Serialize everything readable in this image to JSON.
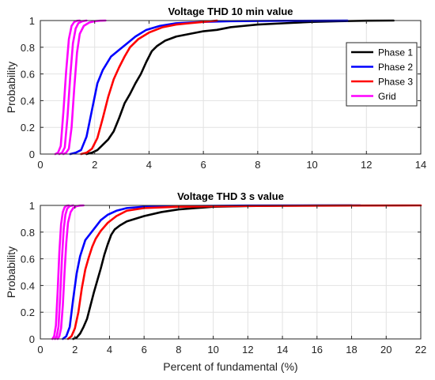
{
  "chart_data": [
    {
      "type": "line",
      "title": "Voltage THD 10 min value",
      "xlabel": "",
      "ylabel": "Probability",
      "xlim": [
        0,
        14
      ],
      "ylim": [
        0,
        1
      ],
      "xticks": [
        0,
        2,
        4,
        6,
        8,
        10,
        12,
        14
      ],
      "yticks": [
        0,
        0.2,
        0.4,
        0.6,
        0.8,
        1
      ],
      "grid": true,
      "legend": "top-right",
      "series": [
        {
          "name": "Phase 1",
          "color": "#000000",
          "x": [
            1.7,
            1.9,
            2.1,
            2.3,
            2.5,
            2.7,
            2.9,
            3.1,
            3.3,
            3.5,
            3.7,
            3.9,
            4.1,
            4.3,
            4.6,
            5.0,
            5.5,
            6.0,
            6.5,
            7.0,
            7.5,
            8.0,
            9.0,
            10.0,
            11.0,
            12.0,
            13.0
          ],
          "y": [
            0,
            0.01,
            0.03,
            0.07,
            0.11,
            0.17,
            0.27,
            0.38,
            0.45,
            0.53,
            0.6,
            0.69,
            0.77,
            0.81,
            0.85,
            0.88,
            0.9,
            0.92,
            0.93,
            0.95,
            0.96,
            0.97,
            0.98,
            0.99,
            0.995,
            0.999,
            1.0
          ]
        },
        {
          "name": "Phase 2",
          "color": "#0000ff",
          "x": [
            1.1,
            1.3,
            1.5,
            1.7,
            1.9,
            2.1,
            2.3,
            2.6,
            2.9,
            3.2,
            3.5,
            3.9,
            4.4,
            5.0,
            6.0,
            7.0,
            9.0,
            11.3
          ],
          "y": [
            0,
            0.01,
            0.03,
            0.13,
            0.33,
            0.53,
            0.63,
            0.73,
            0.78,
            0.83,
            0.88,
            0.93,
            0.96,
            0.98,
            0.99,
            0.995,
            0.998,
            1.0
          ]
        },
        {
          "name": "Phase 3",
          "color": "#ff0000",
          "x": [
            1.5,
            1.7,
            1.9,
            2.1,
            2.3,
            2.5,
            2.7,
            2.9,
            3.1,
            3.3,
            3.6,
            4.0,
            4.5,
            5.0,
            5.5,
            6.0,
            6.5
          ],
          "y": [
            0,
            0.01,
            0.04,
            0.12,
            0.27,
            0.43,
            0.56,
            0.65,
            0.73,
            0.8,
            0.86,
            0.91,
            0.95,
            0.97,
            0.98,
            0.99,
            1.0
          ]
        },
        {
          "name": "Grid",
          "color": "#ff00ff",
          "x": [
            0.55,
            0.65,
            0.75,
            0.85,
            0.95,
            1.05,
            1.15,
            1.25,
            1.35,
            1.45
          ],
          "y": [
            0,
            0.01,
            0.06,
            0.32,
            0.62,
            0.86,
            0.96,
            0.99,
            0.998,
            1.0
          ]
        },
        {
          "name": "",
          "color": "#ff00ff",
          "x": [
            0.7,
            0.8,
            0.9,
            1.0,
            1.1,
            1.2,
            1.3,
            1.4,
            1.55,
            1.7
          ],
          "y": [
            0,
            0.01,
            0.05,
            0.28,
            0.58,
            0.83,
            0.94,
            0.98,
            0.995,
            1.0
          ]
        },
        {
          "name": "",
          "color": "#ff00ff",
          "x": [
            0.85,
            0.95,
            1.05,
            1.15,
            1.25,
            1.35,
            1.45,
            1.6,
            1.8,
            2.0,
            2.2,
            2.4
          ],
          "y": [
            0,
            0.01,
            0.04,
            0.2,
            0.5,
            0.76,
            0.9,
            0.96,
            0.985,
            0.995,
            0.999,
            1.0
          ]
        }
      ]
    },
    {
      "type": "line",
      "title": "Voltage THD 3 s value",
      "xlabel": "Percent of fundamental (%)",
      "ylabel": "Probability",
      "xlim": [
        0,
        22
      ],
      "ylim": [
        0,
        1
      ],
      "xticks": [
        0,
        2,
        4,
        6,
        8,
        10,
        12,
        14,
        16,
        18,
        20,
        22
      ],
      "yticks": [
        0,
        0.2,
        0.4,
        0.6,
        0.8,
        1
      ],
      "grid": true,
      "legend": "",
      "series": [
        {
          "name": "Phase 1",
          "color": "#000000",
          "x": [
            1.9,
            2.1,
            2.3,
            2.5,
            2.7,
            2.9,
            3.1,
            3.3,
            3.5,
            3.7,
            3.9,
            4.1,
            4.3,
            4.6,
            5.0,
            5.5,
            6.0,
            7.0,
            8.0,
            9.0,
            10.0,
            12.0,
            14.0,
            16.0,
            18.0
          ],
          "y": [
            0,
            0.01,
            0.04,
            0.09,
            0.15,
            0.25,
            0.35,
            0.44,
            0.53,
            0.63,
            0.71,
            0.78,
            0.82,
            0.85,
            0.88,
            0.9,
            0.92,
            0.95,
            0.97,
            0.98,
            0.99,
            0.995,
            0.998,
            0.999,
            1.0
          ]
        },
        {
          "name": "Phase 2",
          "color": "#0000ff",
          "x": [
            1.3,
            1.5,
            1.7,
            1.9,
            2.1,
            2.3,
            2.6,
            2.9,
            3.2,
            3.5,
            3.9,
            4.4,
            5.0,
            6.0,
            8.0,
            12.0,
            18.5
          ],
          "y": [
            0,
            0.02,
            0.09,
            0.3,
            0.49,
            0.62,
            0.74,
            0.79,
            0.84,
            0.89,
            0.93,
            0.96,
            0.98,
            0.99,
            0.995,
            0.999,
            1.0
          ]
        },
        {
          "name": "Phase 3",
          "color": "#ff0000",
          "x": [
            1.6,
            1.8,
            2.0,
            2.2,
            2.4,
            2.6,
            2.8,
            3.0,
            3.2,
            3.5,
            3.9,
            4.4,
            5.0,
            6.0,
            8.0,
            12.0,
            18.0,
            22.0
          ],
          "y": [
            0,
            0.02,
            0.08,
            0.2,
            0.38,
            0.52,
            0.61,
            0.69,
            0.75,
            0.81,
            0.87,
            0.92,
            0.96,
            0.98,
            0.99,
            0.996,
            0.999,
            1.0
          ]
        },
        {
          "name": "Grid",
          "color": "#ff00ff",
          "x": [
            0.7,
            0.8,
            0.9,
            1.0,
            1.1,
            1.2,
            1.3,
            1.4,
            1.5,
            1.65
          ],
          "y": [
            0,
            0.02,
            0.1,
            0.35,
            0.65,
            0.86,
            0.95,
            0.985,
            0.997,
            1.0
          ]
        },
        {
          "name": "",
          "color": "#ff00ff",
          "x": [
            0.85,
            0.95,
            1.05,
            1.15,
            1.25,
            1.35,
            1.45,
            1.55,
            1.7,
            1.9
          ],
          "y": [
            0,
            0.02,
            0.09,
            0.32,
            0.6,
            0.82,
            0.93,
            0.975,
            0.995,
            1.0
          ]
        },
        {
          "name": "",
          "color": "#ff00ff",
          "x": [
            1.0,
            1.1,
            1.2,
            1.3,
            1.4,
            1.5,
            1.6,
            1.75,
            1.9,
            2.1,
            2.3,
            2.5
          ],
          "y": [
            0,
            0.02,
            0.08,
            0.25,
            0.5,
            0.72,
            0.87,
            0.95,
            0.98,
            0.995,
            0.999,
            1.0
          ]
        }
      ]
    }
  ]
}
